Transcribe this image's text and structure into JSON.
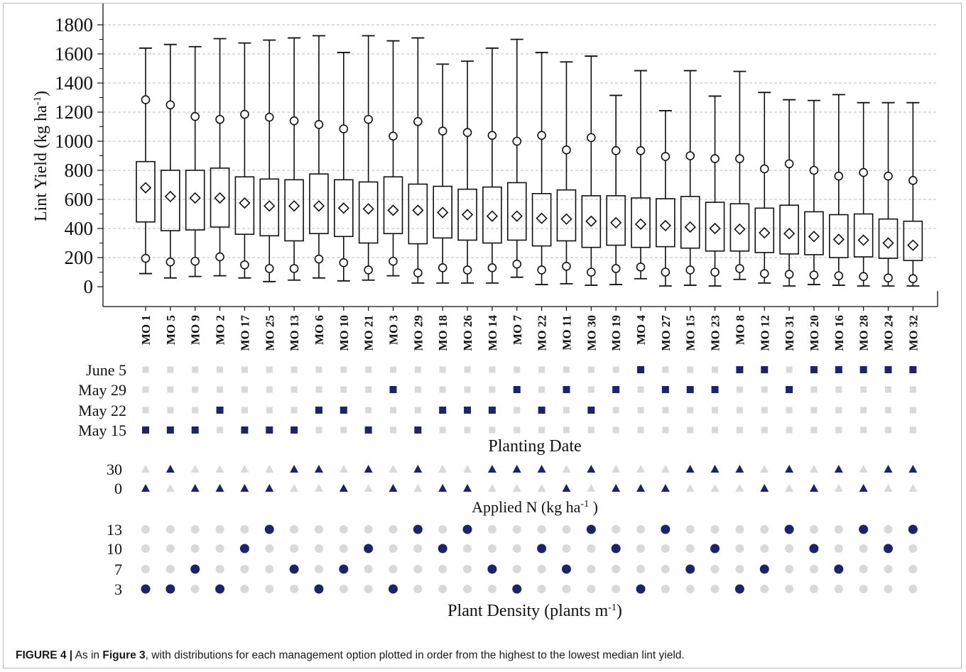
{
  "chart_data": {
    "type": "boxplot",
    "ylabel": "Lint Yield (kg ha",
    "ylabel_sup": "-1",
    "ylabel_end": ")",
    "ylim": [
      0,
      1800
    ],
    "yticks": [
      0,
      200,
      400,
      600,
      800,
      1000,
      1200,
      1400,
      1600,
      1800
    ],
    "grid": "horizontal dashed",
    "categories": [
      "MO 1",
      "MO 5",
      "MO 9",
      "MO 2",
      "MO 17",
      "MO 25",
      "MO 13",
      "MO 6",
      "MO 10",
      "MO 21",
      "MO 3",
      "MO 29",
      "MO 18",
      "MO 26",
      "MO 14",
      "MO 7",
      "MO 22",
      "MO 11",
      "MO 30",
      "MO 19",
      "MO 4",
      "MO 27",
      "MO 15",
      "MO 23",
      "MO 8",
      "MO 12",
      "MO 31",
      "MO 20",
      "MO 16",
      "MO 28",
      "MO 24",
      "MO 32"
    ],
    "series": [
      {
        "stat": "max",
        "values": [
          1640,
          1665,
          1650,
          1705,
          1675,
          1695,
          1710,
          1725,
          1610,
          1725,
          1690,
          1710,
          1530,
          1550,
          1640,
          1700,
          1610,
          1545,
          1585,
          1315,
          1485,
          1210,
          1485,
          1310,
          1480,
          1335,
          1285,
          1280,
          1320,
          1265,
          1265,
          1265
        ]
      },
      {
        "stat": "p95",
        "values": [
          1285,
          1250,
          1170,
          1150,
          1185,
          1165,
          1140,
          1115,
          1085,
          1150,
          1035,
          1135,
          1070,
          1060,
          1040,
          1000,
          1040,
          940,
          1025,
          935,
          935,
          895,
          900,
          880,
          880,
          810,
          845,
          800,
          760,
          785,
          760,
          730
        ]
      },
      {
        "stat": "q3",
        "values": [
          860,
          800,
          800,
          815,
          755,
          740,
          735,
          775,
          735,
          720,
          755,
          705,
          690,
          670,
          685,
          715,
          640,
          665,
          625,
          625,
          610,
          605,
          620,
          580,
          570,
          540,
          560,
          515,
          495,
          500,
          465,
          450
        ]
      },
      {
        "stat": "median",
        "values": [
          680,
          620,
          610,
          610,
          575,
          555,
          555,
          555,
          540,
          535,
          525,
          525,
          510,
          495,
          485,
          485,
          470,
          465,
          450,
          440,
          430,
          420,
          410,
          400,
          395,
          370,
          365,
          345,
          325,
          320,
          300,
          285
        ]
      },
      {
        "stat": "q1",
        "values": [
          445,
          385,
          390,
          410,
          360,
          350,
          315,
          365,
          345,
          300,
          365,
          295,
          335,
          320,
          300,
          320,
          280,
          315,
          270,
          285,
          270,
          275,
          265,
          245,
          245,
          235,
          225,
          220,
          200,
          205,
          195,
          180
        ]
      },
      {
        "stat": "p5",
        "values": [
          195,
          170,
          175,
          205,
          150,
          125,
          125,
          190,
          165,
          115,
          175,
          95,
          130,
          115,
          130,
          155,
          115,
          140,
          100,
          125,
          135,
          100,
          115,
          100,
          125,
          90,
          85,
          80,
          75,
          70,
          60,
          55
        ]
      },
      {
        "stat": "min",
        "values": [
          90,
          60,
          70,
          75,
          60,
          35,
          45,
          60,
          40,
          45,
          75,
          25,
          25,
          25,
          25,
          65,
          15,
          20,
          10,
          15,
          55,
          5,
          10,
          5,
          50,
          25,
          5,
          15,
          10,
          5,
          5,
          5
        ]
      }
    ],
    "mo_labels": [
      "MO 1",
      "MO 5",
      "MO 9",
      "MO 2",
      "MO 17",
      "MO 25",
      "MO 13",
      "MO 6",
      "MO 10",
      "MO 21",
      "MO 3",
      "MO 29",
      "MO 18",
      "MO 26",
      "MO 14",
      "MO 7",
      "MO 22",
      "MO 11",
      "MO 30",
      "MO 19",
      "MO 4",
      "MO 27",
      "MO 15",
      "MO 23",
      "MO 8",
      "MO 12",
      "MO 31",
      "MO 20",
      "MO 16",
      "MO 28",
      "MO 24",
      "MO 32"
    ],
    "factors": [
      {
        "title": "Planting Date",
        "marker": "square",
        "levels": [
          "June 5",
          "May 29",
          "May 22",
          "May 15"
        ],
        "selected": [
          3,
          3,
          3,
          2,
          3,
          3,
          3,
          2,
          2,
          3,
          1,
          3,
          2,
          2,
          2,
          1,
          2,
          1,
          2,
          1,
          0,
          1,
          1,
          1,
          0,
          0,
          1,
          0,
          0,
          0,
          0,
          0
        ]
      },
      {
        "title": "Applied N (kg ha",
        "title_sup": "-1",
        "title_end": " )",
        "marker": "triangle",
        "levels": [
          "30",
          "0"
        ],
        "selected": [
          1,
          0,
          1,
          1,
          1,
          1,
          0,
          0,
          1,
          0,
          1,
          0,
          1,
          1,
          0,
          0,
          0,
          1,
          0,
          1,
          1,
          1,
          0,
          0,
          0,
          1,
          0,
          1,
          0,
          1,
          0,
          0
        ]
      },
      {
        "title": "Plant Density (plants m",
        "title_sup": "-1",
        "title_end": ")",
        "marker": "circle",
        "levels": [
          "13",
          "10",
          "7",
          "3"
        ],
        "selected": [
          3,
          3,
          2,
          3,
          1,
          0,
          2,
          3,
          2,
          1,
          3,
          0,
          1,
          0,
          2,
          3,
          1,
          2,
          0,
          1,
          3,
          0,
          2,
          1,
          3,
          2,
          0,
          1,
          2,
          0,
          1,
          0
        ]
      }
    ],
    "colors": {
      "selected": "#1d2368",
      "unselected": "#d9d9d9",
      "axis": "#111111",
      "grid": "#bbbbbb"
    }
  },
  "caption": {
    "label": "FIGURE 4 |",
    "part1": " As in ",
    "ref": "Figure 3",
    "part2": ", with distributions for each management option plotted in order from the highest to the lowest median lint yield."
  }
}
